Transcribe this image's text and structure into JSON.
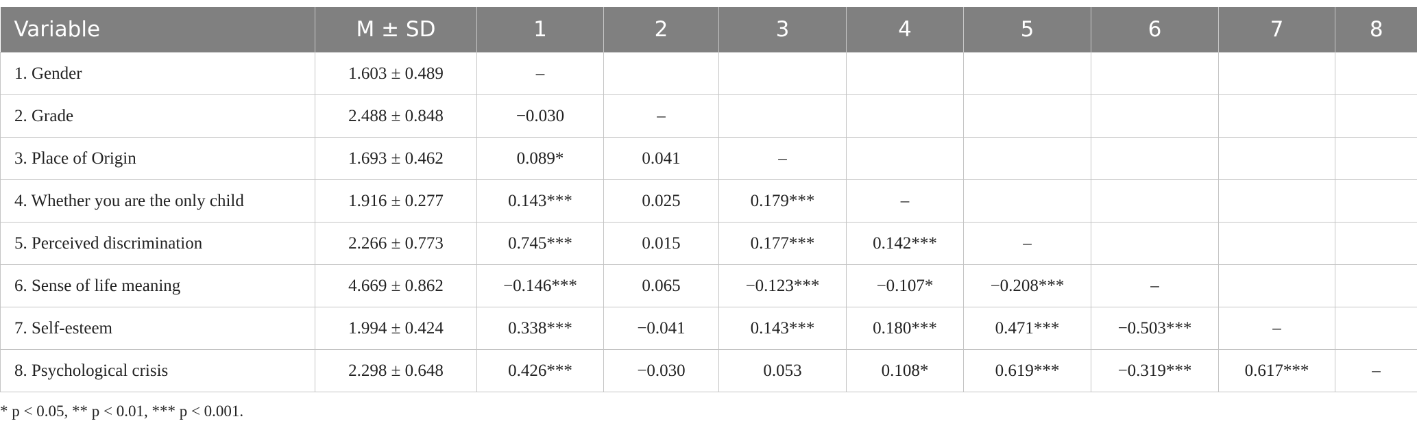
{
  "table": {
    "header": [
      "Variable",
      "M ± SD",
      "1",
      "2",
      "3",
      "4",
      "5",
      "6",
      "7",
      "8"
    ],
    "rows": [
      [
        "1. Gender",
        "1.603 ± 0.489",
        "–"
      ],
      [
        "2. Grade",
        "2.488 ± 0.848",
        "−0.030",
        "–"
      ],
      [
        "3. Place of Origin",
        "1.693 ± 0.462",
        "0.089*",
        "0.041",
        "–"
      ],
      [
        "4. Whether you are the only child",
        "1.916 ± 0.277",
        "0.143***",
        "0.025",
        "0.179***",
        "–"
      ],
      [
        "5. Perceived discrimination",
        "2.266 ± 0.773",
        "0.745***",
        "0.015",
        "0.177***",
        "0.142***",
        "–"
      ],
      [
        "6. Sense of life meaning",
        "4.669 ± 0.862",
        "−0.146***",
        "0.065",
        "−0.123***",
        "−0.107*",
        "−0.208***",
        "–"
      ],
      [
        "7. Self-esteem",
        "1.994 ± 0.424",
        "0.338***",
        "−0.041",
        "0.143***",
        "0.180***",
        "0.471***",
        "−0.503***",
        "–"
      ],
      [
        "8. Psychological crisis",
        "2.298 ± 0.648",
        "0.426***",
        "−0.030",
        "0.053",
        "0.108*",
        "0.619***",
        "−0.319***",
        "0.617***",
        "–"
      ]
    ]
  },
  "footnote": "* p < 0.05, ** p < 0.01, *** p < 0.001."
}
